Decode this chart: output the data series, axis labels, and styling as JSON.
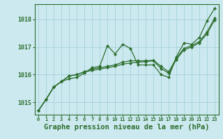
{
  "title": "Graphe pression niveau de la mer (hPa)",
  "bg_color": "#cce9f0",
  "grid_color": "#aad4dc",
  "line_color": "#2d6e2d",
  "hours": [
    0,
    1,
    2,
    3,
    4,
    5,
    6,
    7,
    8,
    9,
    10,
    11,
    12,
    13,
    14,
    15,
    16,
    17,
    18,
    19,
    20,
    21,
    22,
    23
  ],
  "series1": [
    1014.7,
    1015.1,
    1015.55,
    1015.75,
    1015.85,
    1015.9,
    1016.05,
    1016.25,
    1016.3,
    1017.05,
    1016.75,
    1017.1,
    1016.95,
    1016.35,
    1016.35,
    1016.35,
    1016.0,
    1015.9,
    1016.65,
    1017.15,
    1017.1,
    1017.35,
    1017.95,
    1018.4
  ],
  "series2": [
    1014.7,
    1015.1,
    1015.55,
    1015.75,
    1015.95,
    1016.0,
    1016.1,
    1016.2,
    1016.25,
    1016.3,
    1016.35,
    1016.45,
    1016.5,
    1016.5,
    1016.5,
    1016.52,
    1016.3,
    1016.1,
    1016.6,
    1016.95,
    1017.05,
    1017.2,
    1017.55,
    1018.05
  ],
  "series3": [
    1014.7,
    1015.1,
    1015.55,
    1015.75,
    1015.95,
    1016.0,
    1016.1,
    1016.15,
    1016.2,
    1016.25,
    1016.3,
    1016.38,
    1016.42,
    1016.45,
    1016.47,
    1016.5,
    1016.22,
    1016.05,
    1016.55,
    1016.9,
    1017.0,
    1017.15,
    1017.48,
    1017.98
  ],
  "ylim": [
    1014.55,
    1018.55
  ],
  "yticks": [
    1015,
    1016,
    1017,
    1018
  ],
  "title_fontsize": 7.5
}
